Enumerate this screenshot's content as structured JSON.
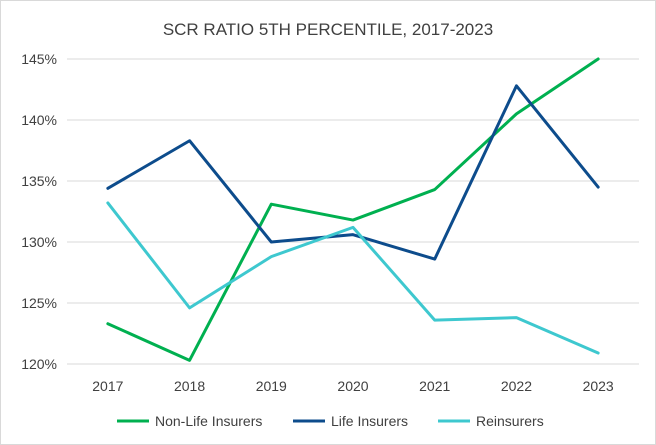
{
  "chart_data": {
    "type": "line",
    "title": "SCR RATIO 5TH PERCENTILE, 2017-2023",
    "xlabel": "",
    "ylabel": "",
    "categories": [
      "2017",
      "2018",
      "2019",
      "2020",
      "2021",
      "2022",
      "2023"
    ],
    "ylim": [
      120,
      145
    ],
    "y_ticks": [
      120,
      125,
      130,
      135,
      140,
      145
    ],
    "y_tick_labels": [
      "120%",
      "125%",
      "130%",
      "135%",
      "140%",
      "145%"
    ],
    "grid": true,
    "legend_position": "bottom",
    "series": [
      {
        "name": "Non-Life Insurers",
        "color": "#00b050",
        "values": [
          123.3,
          120.3,
          133.1,
          131.8,
          134.3,
          140.5,
          145.0
        ]
      },
      {
        "name": "Life Insurers",
        "color": "#0d4c8c",
        "values": [
          134.4,
          138.3,
          130.0,
          130.6,
          128.6,
          142.8,
          134.5
        ]
      },
      {
        "name": "Reinsurers",
        "color": "#3ec8cf",
        "values": [
          133.2,
          124.6,
          128.8,
          131.2,
          123.6,
          123.8,
          120.9
        ]
      }
    ]
  }
}
